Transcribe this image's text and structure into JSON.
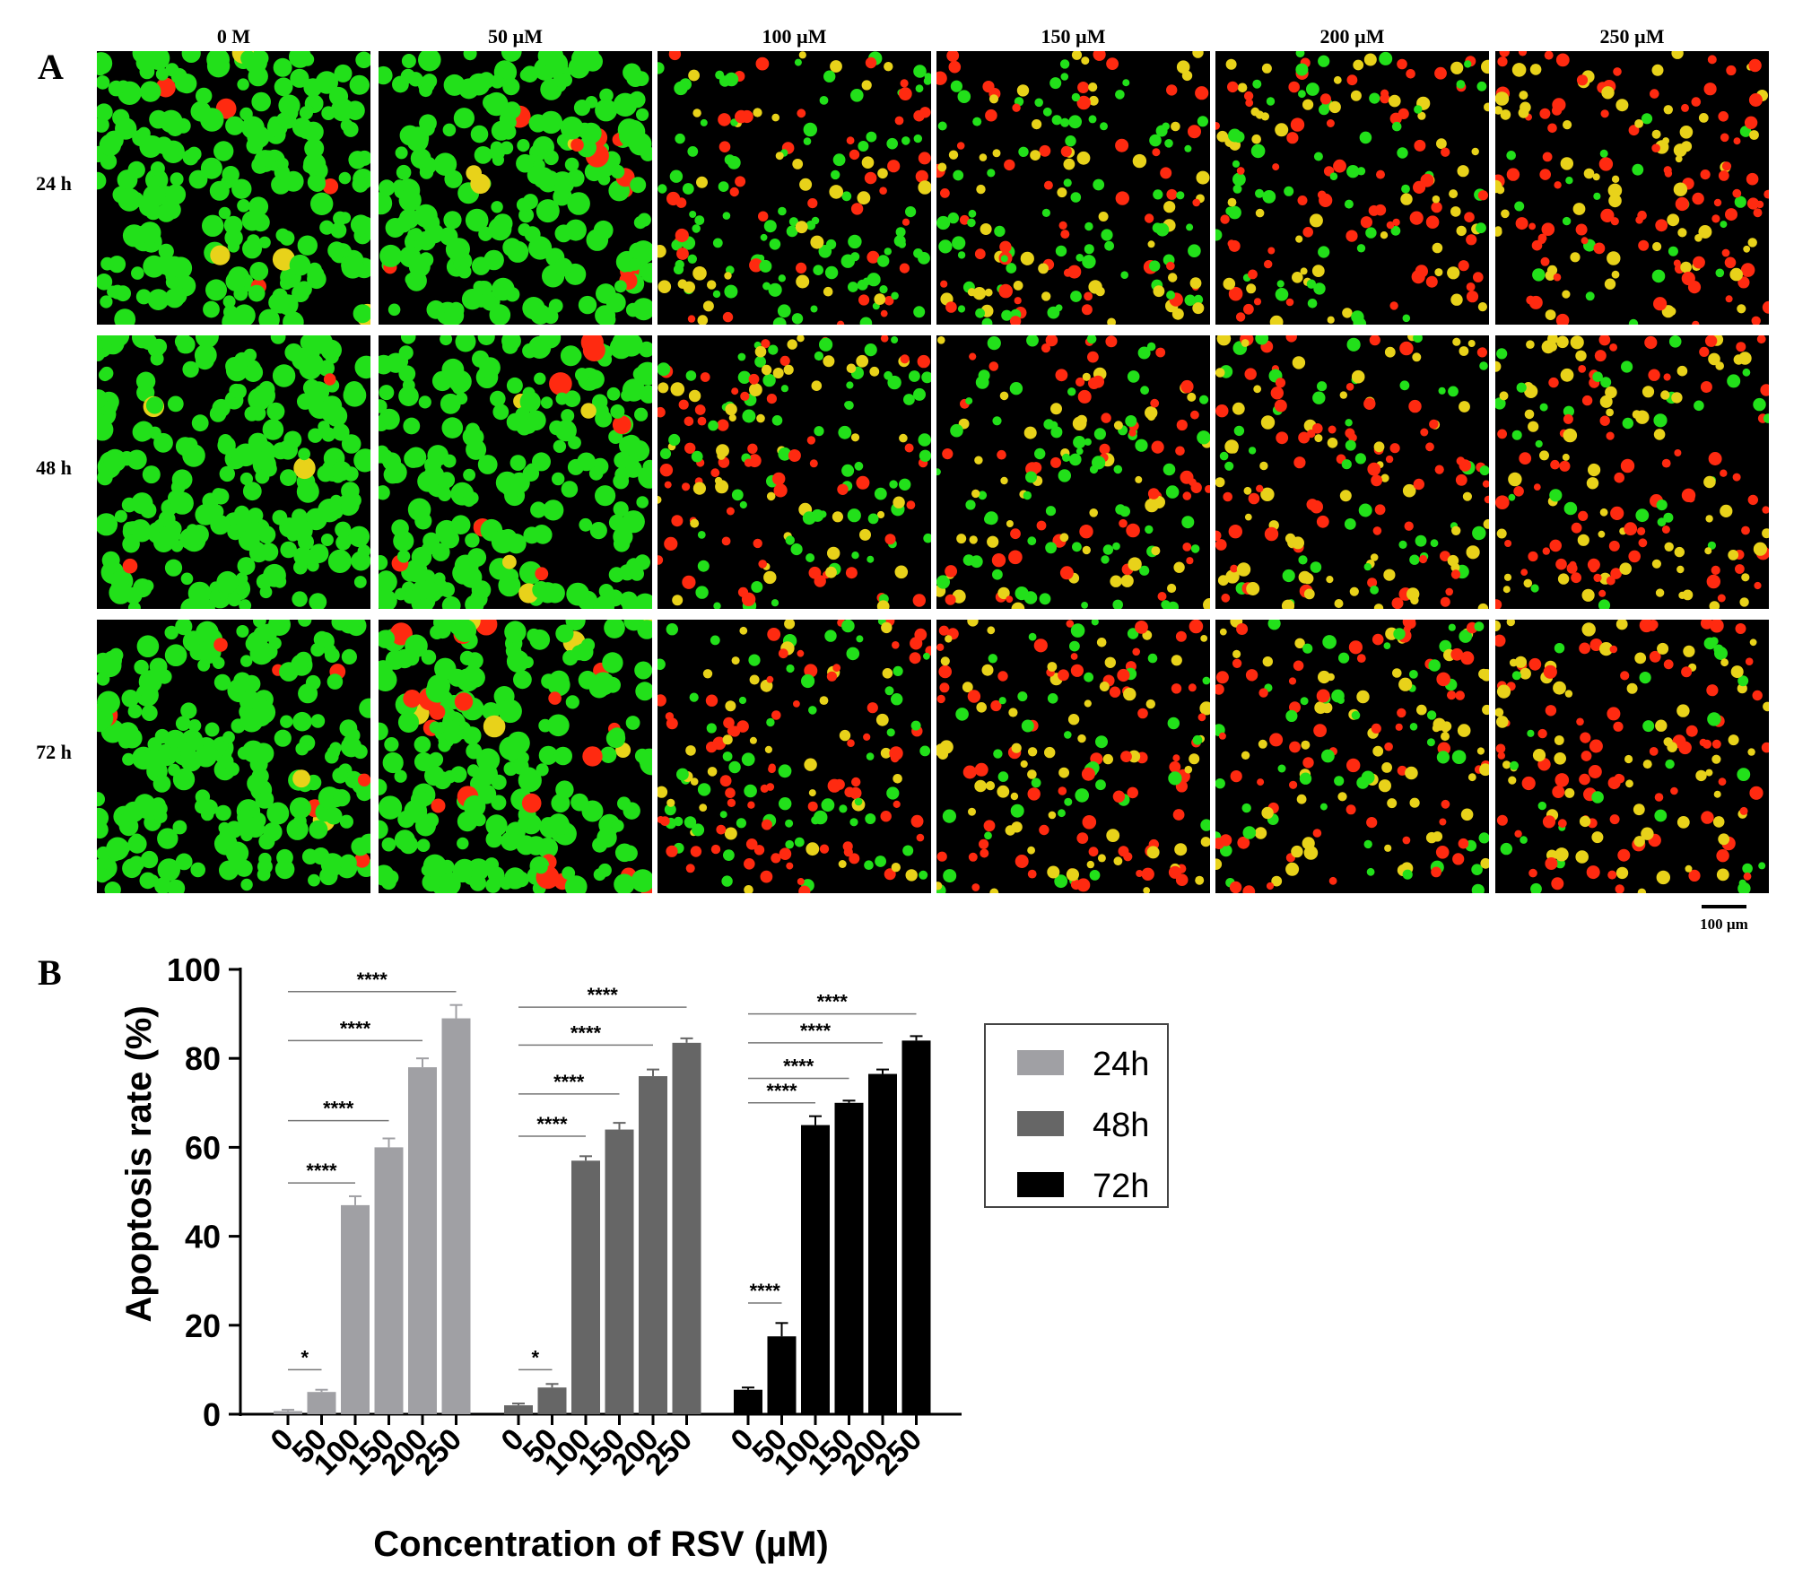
{
  "panel_a": {
    "letter": "A",
    "columns": [
      "0 M",
      "50 µM",
      "100 µM",
      "150 µM",
      "200 µM",
      "250 µM"
    ],
    "rows": [
      "24 h",
      "48 h",
      "72 h"
    ],
    "scale_bar": "100 µm",
    "cell_colors": {
      "background": "#000000",
      "live": "#22e01a",
      "apoptotic": "#e8d21a",
      "dead": "#ff2a10"
    },
    "dead_fraction": [
      [
        0.02,
        0.03,
        0.45,
        0.55,
        0.75,
        0.88
      ],
      [
        0.03,
        0.06,
        0.55,
        0.6,
        0.75,
        0.85
      ],
      [
        0.05,
        0.12,
        0.65,
        0.7,
        0.76,
        0.85
      ]
    ]
  },
  "panel_b": {
    "letter": "B"
  },
  "chart_data": {
    "type": "bar",
    "xlabel": "Concentration of RSV (µM)",
    "ylabel": "Apoptosis rate (%)",
    "ylim": [
      0,
      100
    ],
    "yticks": [
      "0",
      "20",
      "40",
      "60",
      "80",
      "100"
    ],
    "categories": [
      "0",
      "50",
      "100",
      "150",
      "200",
      "250"
    ],
    "legend_position": "right",
    "series": [
      {
        "name": "24h",
        "color": "#a0a0a4",
        "values": [
          0.7,
          5.0,
          47.0,
          60.0,
          78.0,
          89.0
        ],
        "errors": [
          0.3,
          0.5,
          2.0,
          2.0,
          2.0,
          3.0
        ]
      },
      {
        "name": "48h",
        "color": "#666666",
        "values": [
          2.0,
          6.0,
          57.0,
          64.0,
          76.0,
          83.5
        ],
        "errors": [
          0.4,
          0.8,
          1.0,
          1.5,
          1.5,
          1.0
        ]
      },
      {
        "name": "72h",
        "color": "#000000",
        "values": [
          5.5,
          17.5,
          65.0,
          70.0,
          76.5,
          84.0
        ],
        "errors": [
          0.5,
          3.0,
          2.0,
          0.5,
          1.0,
          1.0
        ]
      }
    ],
    "significance": [
      {
        "series": 0,
        "to": 1,
        "label": "*",
        "y": 10
      },
      {
        "series": 0,
        "to": 2,
        "label": "****",
        "y": 52
      },
      {
        "series": 0,
        "to": 3,
        "label": "****",
        "y": 66
      },
      {
        "series": 0,
        "to": 4,
        "label": "****",
        "y": 84
      },
      {
        "series": 0,
        "to": 5,
        "label": "****",
        "y": 95
      },
      {
        "series": 1,
        "to": 1,
        "label": "*",
        "y": 10
      },
      {
        "series": 1,
        "to": 2,
        "label": "****",
        "y": 62.5
      },
      {
        "series": 1,
        "to": 3,
        "label": "****",
        "y": 72
      },
      {
        "series": 1,
        "to": 4,
        "label": "****",
        "y": 83
      },
      {
        "series": 1,
        "to": 5,
        "label": "****",
        "y": 91.5
      },
      {
        "series": 2,
        "to": 1,
        "label": "****",
        "y": 25
      },
      {
        "series": 2,
        "to": 2,
        "label": "****",
        "y": 70
      },
      {
        "series": 2,
        "to": 3,
        "label": "****",
        "y": 75.5
      },
      {
        "series": 2,
        "to": 4,
        "label": "****",
        "y": 83.5
      },
      {
        "series": 2,
        "to": 5,
        "label": "****",
        "y": 90
      }
    ]
  }
}
